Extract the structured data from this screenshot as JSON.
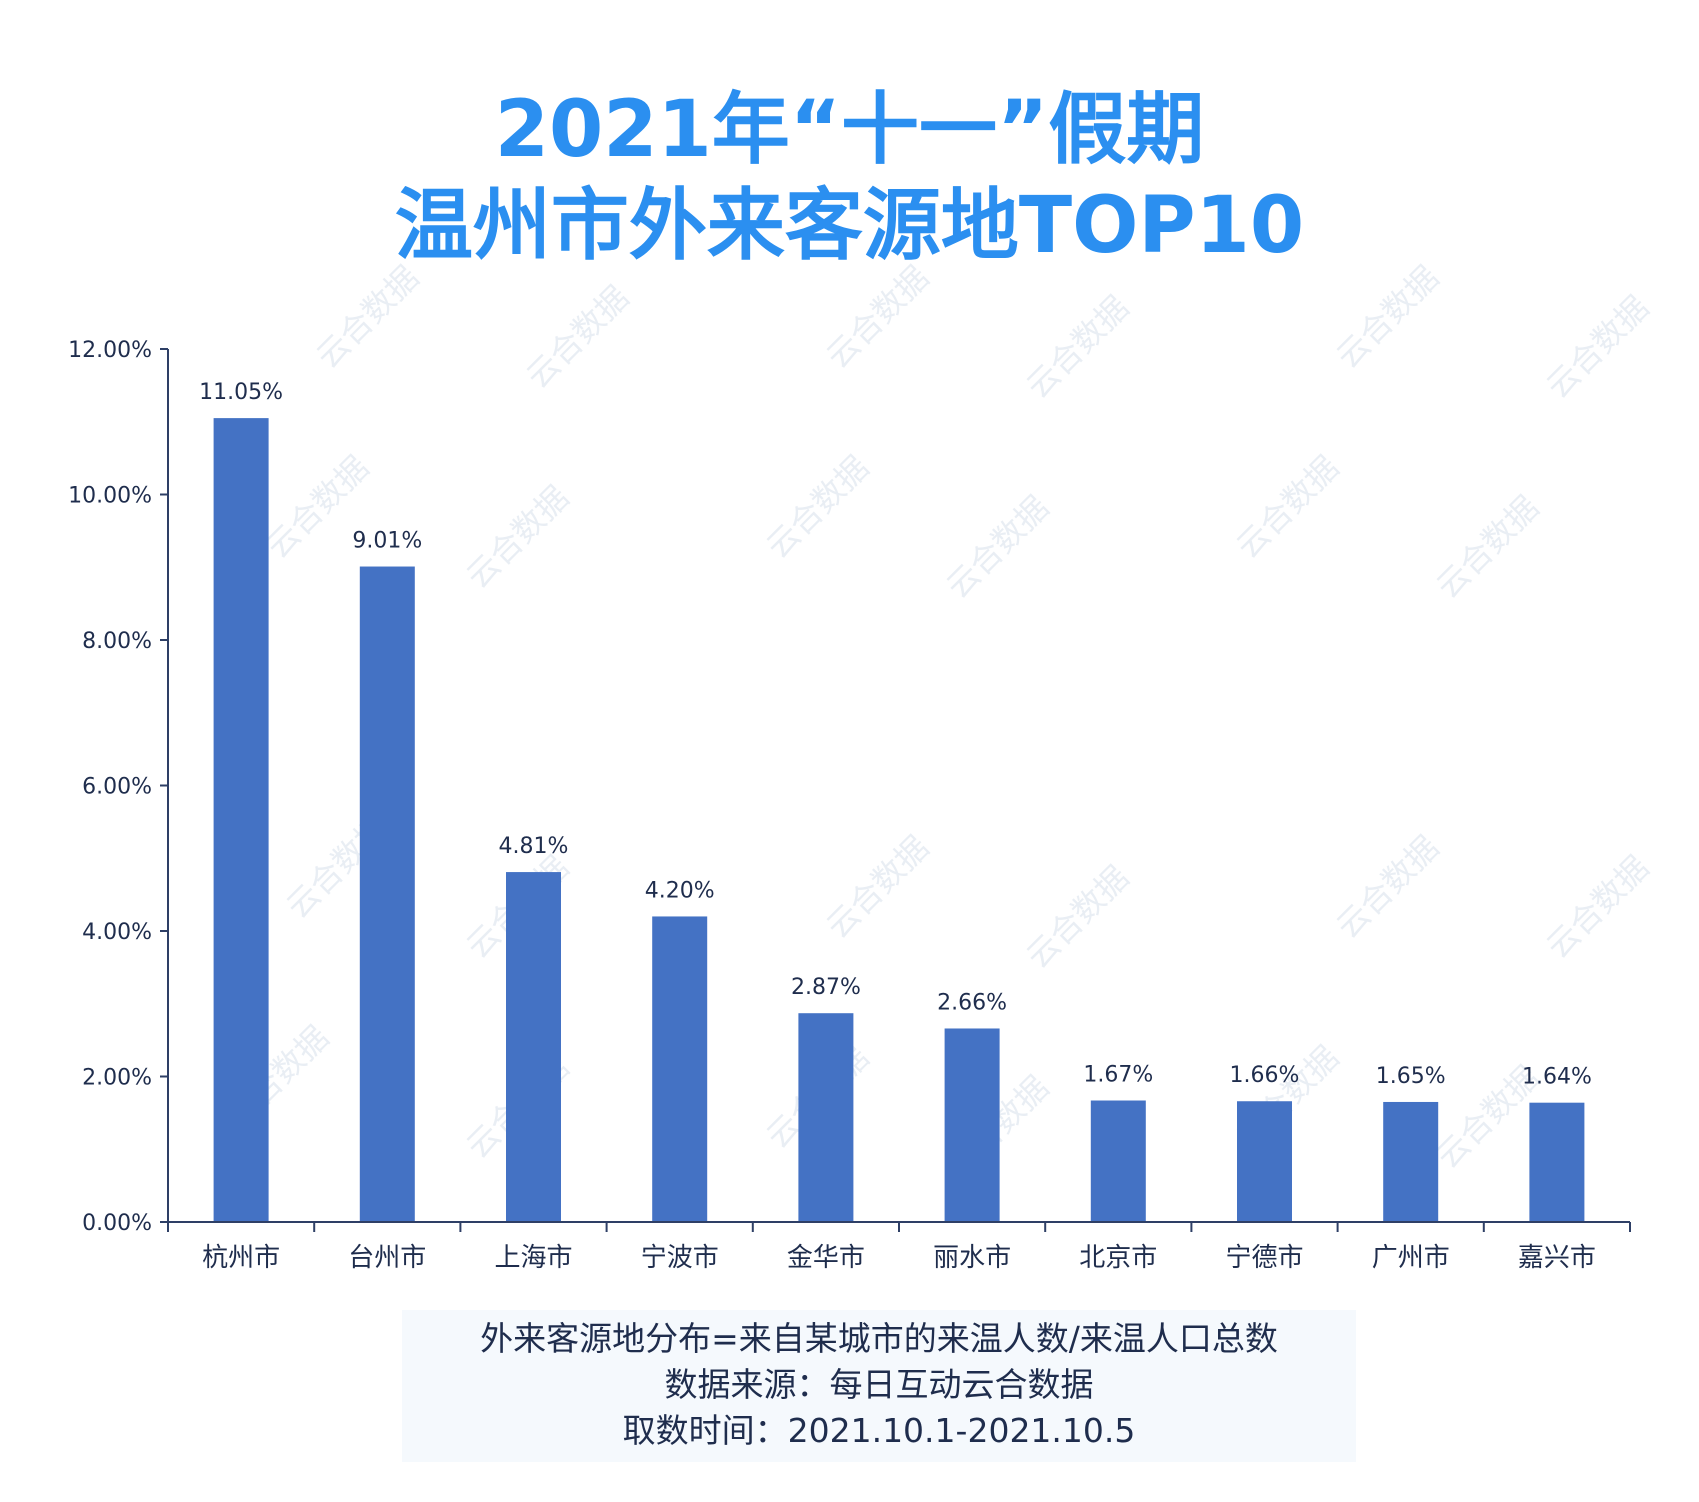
{
  "title": {
    "line1": "2021年“十一”假期",
    "line2": "温州市外来客源地TOP10"
  },
  "watermark": "云合数据",
  "colors": {
    "title": "#2b8ff0",
    "bar": "#4472c4",
    "axis": "#2e3f66",
    "text": "#1f2d4d"
  },
  "chart_data": {
    "type": "bar",
    "title": "2021年“十一”假期 温州市外来客源地TOP10",
    "xlabel": "",
    "ylabel": "",
    "categories": [
      "杭州市",
      "台州市",
      "上海市",
      "宁波市",
      "金华市",
      "丽水市",
      "北京市",
      "宁德市",
      "广州市",
      "嘉兴市"
    ],
    "values": [
      11.05,
      9.01,
      4.81,
      4.2,
      2.87,
      2.66,
      1.67,
      1.66,
      1.65,
      1.64
    ],
    "value_labels": [
      "11.05%",
      "9.01%",
      "4.81%",
      "4.20%",
      "2.87%",
      "2.66%",
      "1.67%",
      "1.66%",
      "1.65%",
      "1.64%"
    ],
    "ylim": [
      0,
      12
    ],
    "yticks": [
      0,
      2,
      4,
      6,
      8,
      10,
      12
    ],
    "ytick_labels": [
      "0.00%",
      "2.00%",
      "4.00%",
      "6.00%",
      "8.00%",
      "10.00%",
      "12.00%"
    ],
    "grid": false,
    "legend": "none"
  },
  "notes": {
    "formula": "外来客源地分布=来自某城市的来温人数/来温人口总数",
    "source": "数据来源：每日互动云合数据",
    "period": "取数时间：2021.10.1-2021.10.5"
  }
}
